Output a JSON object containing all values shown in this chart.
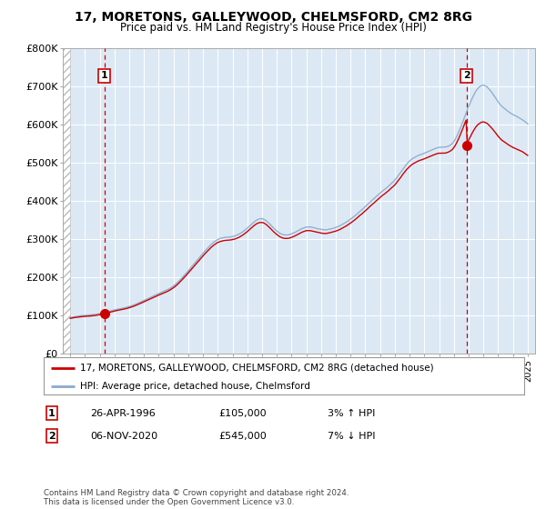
{
  "title": "17, MORETONS, GALLEYWOOD, CHELMSFORD, CM2 8RG",
  "subtitle": "Price paid vs. HM Land Registry's House Price Index (HPI)",
  "transaction1_date": 1996.32,
  "transaction1_price": 105000,
  "transaction1_label": "1",
  "transaction2_date": 2020.85,
  "transaction2_price": 545000,
  "transaction2_label": "2",
  "xmin": 1993.5,
  "xmax": 2025.5,
  "ymin": 0,
  "ymax": 800000,
  "hatch_end": 1994.0,
  "background_color": "#dce9f5",
  "hatch_color": "#bbbbbb",
  "red_line_color": "#cc0000",
  "blue_line_color": "#88aacc",
  "marker_color": "#cc0000",
  "dashed_line_color": "#cc0000",
  "legend_box_entry1": "17, MORETONS, GALLEYWOOD, CHELMSFORD, CM2 8RG (detached house)",
  "legend_box_entry2": "HPI: Average price, detached house, Chelmsford",
  "annotation1_date": "26-APR-1996",
  "annotation1_price": "£105,000",
  "annotation1_hpi": "3% ↑ HPI",
  "annotation2_date": "06-NOV-2020",
  "annotation2_price": "£545,000",
  "annotation2_hpi": "7% ↓ HPI",
  "footer": "Contains HM Land Registry data © Crown copyright and database right 2024.\nThis data is licensed under the Open Government Licence v3.0.",
  "ytick_labels": [
    "£0",
    "£100K",
    "£200K",
    "£300K",
    "£400K",
    "£500K",
    "£600K",
    "£700K",
    "£800K"
  ],
  "ytick_values": [
    0,
    100000,
    200000,
    300000,
    400000,
    500000,
    600000,
    700000,
    800000
  ],
  "hpi_years": [
    1994,
    1995,
    1996,
    1997,
    1998,
    1999,
    2000,
    2001,
    2002,
    2003,
    2004,
    2005,
    2006,
    2007,
    2008,
    2009,
    2010,
    2011,
    2012,
    2013,
    2014,
    2015,
    2016,
    2017,
    2018,
    2019,
    2020,
    2021,
    2022,
    2023,
    2024,
    2025
  ],
  "hpi_values": [
    95000,
    100000,
    105000,
    115000,
    124000,
    140000,
    158000,
    178000,
    218000,
    264000,
    300000,
    308000,
    330000,
    355000,
    322000,
    314000,
    332000,
    326000,
    330000,
    352000,
    385000,
    420000,
    455000,
    505000,
    525000,
    540000,
    555000,
    645000,
    700000,
    658000,
    625000,
    600000
  ]
}
